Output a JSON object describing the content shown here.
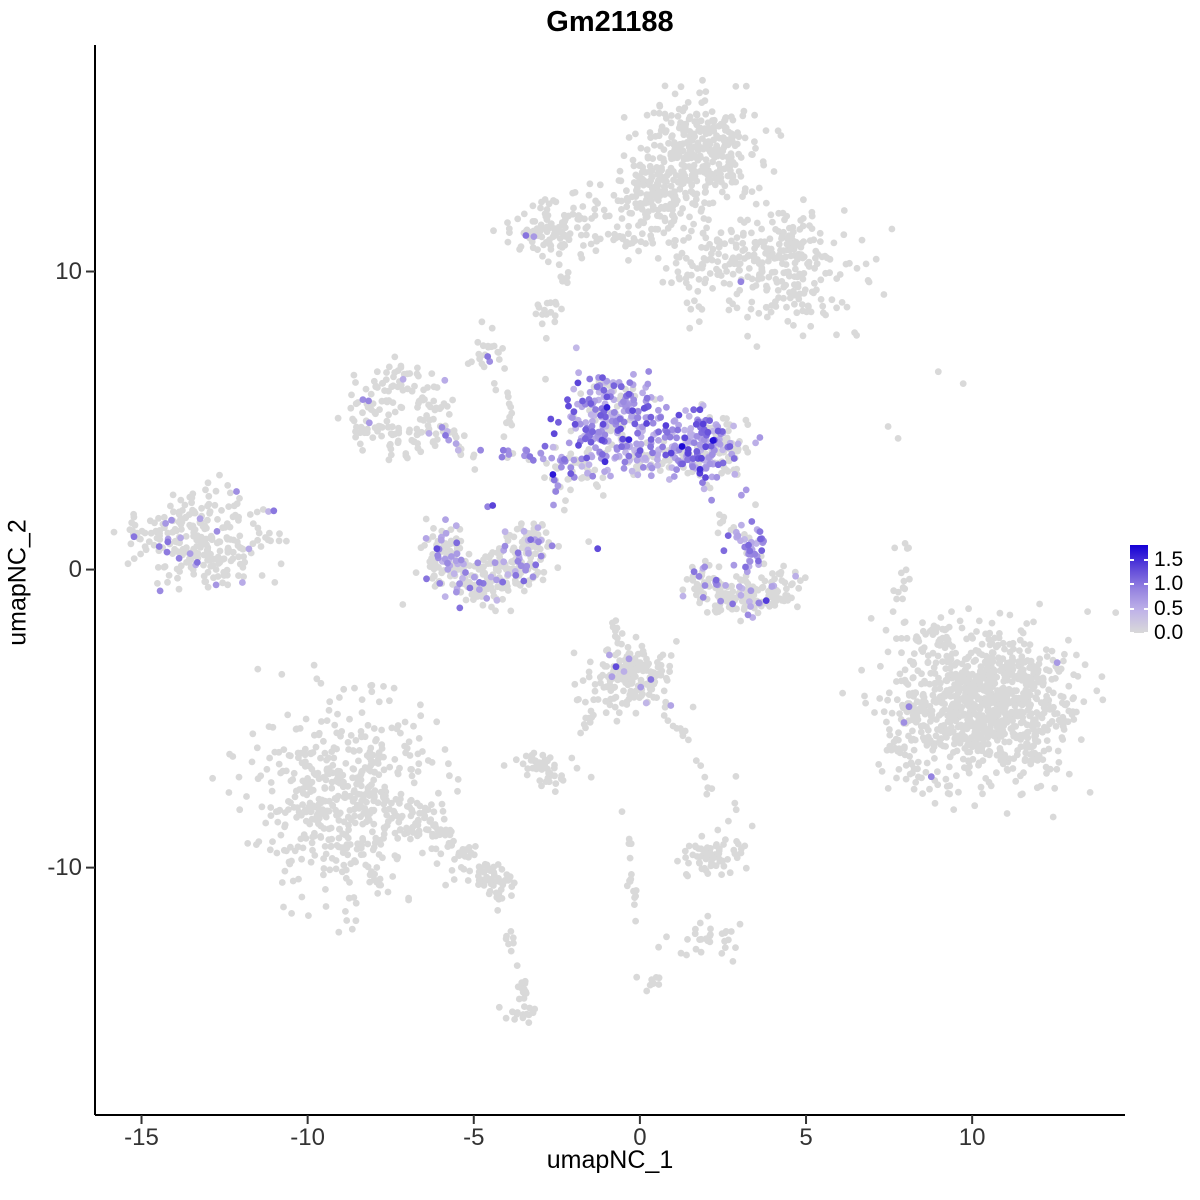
{
  "chart_data": {
    "type": "scatter",
    "title": "Gm21188",
    "xlabel": "umapNC_1",
    "ylabel": "umapNC_2",
    "x_ticks": [
      -15,
      -10,
      -5,
      0,
      5,
      10
    ],
    "y_ticks": [
      -10,
      0,
      10
    ],
    "x_range": [
      -16.4,
      14.6
    ],
    "y_range": [
      -18.3,
      17.6
    ],
    "point_radius": 3.4,
    "grid": false,
    "legend_position": "right",
    "color_scale": {
      "max": 1.8,
      "stops": [
        [
          0,
          "#d9d9d9"
        ],
        [
          0.25,
          "#c0b4e8"
        ],
        [
          0.5,
          "#9583e0"
        ],
        [
          0.75,
          "#5b44d9"
        ],
        [
          1,
          "#1400d6"
        ]
      ],
      "labels": [
        {
          "v": 1.5,
          "label": "1.5"
        },
        {
          "v": 1.0,
          "label": "1.0"
        },
        {
          "v": 0.5,
          "label": "0.5"
        },
        {
          "v": 0.0,
          "label": "0.0"
        }
      ]
    },
    "clusters": [
      {
        "k": "blob",
        "name": "top-main-core",
        "x": 1.8,
        "y": 14.1,
        "sx": 0.8,
        "sy": 0.85,
        "n": 330
      },
      {
        "k": "blob",
        "name": "top-main-left",
        "x": 0.3,
        "y": 12.6,
        "sx": 0.55,
        "sy": 0.62,
        "n": 140
      },
      {
        "k": "blob",
        "name": "top-right-arm",
        "x": 4.1,
        "y": 10.5,
        "sx": 1.05,
        "sy": 0.8,
        "n": 230
      },
      {
        "k": "blob",
        "name": "top-bridge",
        "x": 1.6,
        "y": 10.6,
        "sx": 0.5,
        "sy": 0.85,
        "n": 70
      },
      {
        "k": "blob",
        "name": "top-arm-scatter",
        "x": 4.8,
        "y": 8.9,
        "sx": 0.9,
        "sy": 0.5,
        "n": 40
      },
      {
        "k": "blob",
        "name": "topleft-small",
        "x": -2.4,
        "y": 11.5,
        "sx": 0.8,
        "sy": 0.5,
        "n": 110
      },
      {
        "k": "trail",
        "x": -1.2,
        "y": 11.2,
        "x2": 0.45,
        "y2": 11.0,
        "j": 0.15,
        "n": 22
      },
      {
        "k": "trail",
        "x": -2.35,
        "y": 10.9,
        "x2": -2.2,
        "y2": 9.6,
        "j": 0.1,
        "n": 8
      },
      {
        "k": "blob",
        "name": "tilted-piece",
        "x": -2.77,
        "y": 8.6,
        "sx": 0.22,
        "sy": 0.3,
        "n": 16
      },
      {
        "k": "blob",
        "name": "flame",
        "x": -4.6,
        "y": 7.3,
        "sx": 0.28,
        "sy": 0.42,
        "n": 22
      },
      {
        "k": "ring",
        "name": "midleft-ring",
        "x": -7.17,
        "y": 5.3,
        "r": 1.05,
        "rs": 0.38,
        "n": 160,
        "f": 0.1,
        "v0": 0.5,
        "v1": 1.1
      },
      {
        "k": "trail",
        "x": -6.0,
        "y": 4.8,
        "x2": -5.0,
        "y2": 3.9,
        "j": 0.15,
        "n": 12,
        "f": 0.15
      },
      {
        "k": "trail",
        "x": -4.2,
        "y": 6.4,
        "x2": -3.8,
        "y2": 4.3,
        "j": 0.12,
        "n": 13
      },
      {
        "k": "trail",
        "x": -4.4,
        "y": 3.96,
        "x2": -2.8,
        "y2": 3.76,
        "j": 0.12,
        "n": 15,
        "f": 0.5,
        "v0": 0.6,
        "v1": 1.0
      },
      {
        "k": "trail",
        "x": -5.7,
        "y": 4.2,
        "x2": -4.8,
        "y2": 3.4,
        "j": 0.15,
        "n": 8,
        "f": 0.2
      },
      {
        "k": "blob",
        "name": "central-left-lobe",
        "x": -0.84,
        "y": 5.0,
        "sx": 0.72,
        "sy": 0.78,
        "n": 260,
        "f": 0.78,
        "v0": 0.4,
        "v1": 1.35
      },
      {
        "k": "trail",
        "x": -1.2,
        "y": 6.3,
        "x2": -0.84,
        "y2": 5.8,
        "j": 0.12,
        "n": 10,
        "f": 0.7
      },
      {
        "k": "blob",
        "name": "central-bridge",
        "x": 0.36,
        "y": 3.7,
        "sx": 0.55,
        "sy": 0.33,
        "n": 55,
        "f": 0.55
      },
      {
        "k": "blob",
        "name": "central-right-lobe",
        "x": 1.8,
        "y": 4.13,
        "sx": 0.55,
        "sy": 0.62,
        "n": 190,
        "f": 0.72,
        "v0": 0.4,
        "v1": 1.4
      },
      {
        "k": "blob",
        "name": "central-right-fringe",
        "x": 2.65,
        "y": 3.96,
        "sx": 0.3,
        "sy": 0.45,
        "n": 45,
        "f": 0.15
      },
      {
        "k": "blob",
        "name": "central-spur",
        "x": -1.87,
        "y": 3.36,
        "sx": 0.4,
        "sy": 0.5,
        "n": 45,
        "f": 0.5
      },
      {
        "k": "trail",
        "x": -2.62,
        "y": 3.96,
        "x2": -2.47,
        "y2": 1.95,
        "j": 0.12,
        "n": 12,
        "f": 0.4
      },
      {
        "k": "blob",
        "name": "c-cluster-left",
        "x": -5.9,
        "y": 0.4,
        "sx": 0.35,
        "sy": 0.55,
        "n": 90,
        "f": 0.22
      },
      {
        "k": "blob",
        "name": "c-cluster-bottom",
        "x": -4.76,
        "y": -0.4,
        "sx": 0.62,
        "sy": 0.4,
        "n": 120,
        "f": 0.22
      },
      {
        "k": "blob",
        "name": "c-cluster-right",
        "x": -3.58,
        "y": 0.34,
        "sx": 0.4,
        "sy": 0.5,
        "n": 95,
        "f": 0.22
      },
      {
        "k": "blob",
        "name": "c-cluster-tip",
        "x": -3.25,
        "y": 1.11,
        "sx": 0.25,
        "sy": 0.3,
        "n": 25,
        "f": 0.2
      },
      {
        "k": "blob",
        "name": "left-island",
        "x": -13.5,
        "y": 1.0,
        "sx": 0.85,
        "sy": 0.75,
        "n": 240,
        "f": 0.085
      },
      {
        "k": "blob",
        "name": "left-island-east",
        "x": -11.6,
        "y": 1.17,
        "sx": 0.5,
        "sy": 0.8,
        "n": 28,
        "f": 0.1
      },
      {
        "k": "blob",
        "name": "right-streak",
        "x": 3.31,
        "y": 0.7,
        "sx": 0.28,
        "sy": 0.55,
        "n": 50,
        "f": 0.8,
        "v0": 0.4,
        "v1": 1.2
      },
      {
        "k": "trail",
        "x": 2.5,
        "y": 1.7,
        "x2": 3.1,
        "y2": 0.97,
        "j": 0.15,
        "n": 9,
        "f": 0.1
      },
      {
        "k": "blob",
        "name": "arc-left-tip",
        "x": 1.99,
        "y": -0.44,
        "sx": 0.3,
        "sy": 0.3,
        "n": 40,
        "f": 0.18
      },
      {
        "k": "blob",
        "name": "arc-bottom",
        "x": 3.07,
        "y": -0.94,
        "sx": 0.65,
        "sy": 0.3,
        "n": 110,
        "f": 0.1
      },
      {
        "k": "blob",
        "name": "arc-right-tip",
        "x": 4.31,
        "y": -0.5,
        "sx": 0.25,
        "sy": 0.35,
        "n": 30,
        "f": 0.12
      },
      {
        "k": "blob",
        "name": "mid-bottom",
        "x": -0.36,
        "y": -3.59,
        "sx": 0.62,
        "sy": 0.55,
        "n": 180,
        "f": 0.02,
        "v0": 0.4,
        "v1": 0.8
      },
      {
        "k": "trail",
        "x": -0.72,
        "y": -2.62,
        "x2": -0.9,
        "y2": -1.41,
        "j": 0.1,
        "n": 8
      },
      {
        "k": "trail",
        "x": -1.33,
        "y": -4.77,
        "x2": -2.02,
        "y2": -5.77,
        "j": 0.12,
        "n": 9
      },
      {
        "k": "trail",
        "x": 0.84,
        "y": -4.77,
        "x2": 1.57,
        "y2": -5.6,
        "j": 0.12,
        "n": 9
      },
      {
        "k": "trail",
        "x": 1.8,
        "y": -6.4,
        "x2": 2.1,
        "y2": -7.6,
        "j": 0.1,
        "n": 6
      },
      {
        "k": "blob",
        "name": "small-mid-blob",
        "x": -2.86,
        "y": -6.71,
        "sx": 0.45,
        "sy": 0.35,
        "n": 40
      },
      {
        "k": "blob",
        "x": -3.4,
        "y": -6.31,
        "sx": 0.15,
        "sy": 0.15,
        "n": 5
      },
      {
        "k": "blob",
        "name": "bottomleft-main",
        "x": -8.9,
        "y": -7.7,
        "sx": 1.3,
        "sy": 1.55,
        "n": 520
      },
      {
        "k": "trail",
        "name": "bottomleft-tail",
        "x": -7.0,
        "y": -8.1,
        "x2": -4.3,
        "y2": -10.45,
        "j": 0.28,
        "n": 80
      },
      {
        "k": "blob",
        "x": -4.31,
        "y": -10.5,
        "sx": 0.35,
        "sy": 0.3,
        "n": 40
      },
      {
        "k": "trail",
        "x": -4.2,
        "y": -11.2,
        "x2": -3.73,
        "y2": -12.9,
        "j": 0.1,
        "n": 8
      },
      {
        "k": "trail",
        "x": -3.67,
        "y": -13.36,
        "x2": -3.4,
        "y2": -14.7,
        "j": 0.12,
        "n": 14
      },
      {
        "k": "blob",
        "x": -3.55,
        "y": -14.93,
        "sx": 0.3,
        "sy": 0.2,
        "n": 16
      },
      {
        "k": "blob",
        "name": "bottomright-main",
        "x": 10.4,
        "y": -4.5,
        "sx": 1.3,
        "sy": 1.2,
        "n": 950
      },
      {
        "k": "blob",
        "name": "bottomright-spur",
        "x": 7.98,
        "y": -5.87,
        "sx": 0.35,
        "sy": 0.8,
        "n": 60
      },
      {
        "k": "blob",
        "x": 8.58,
        "y": -2.35,
        "sx": 0.5,
        "sy": 0.35,
        "n": 35
      },
      {
        "k": "blob",
        "name": "south-blob",
        "x": 2.17,
        "y": -9.56,
        "sx": 0.5,
        "sy": 0.35,
        "n": 65
      },
      {
        "k": "blob",
        "x": 2.92,
        "y": -7.72,
        "sx": 0.25,
        "sy": 0.4,
        "n": 5
      },
      {
        "k": "trail",
        "x": -0.36,
        "y": -8.99,
        "x2": -0.12,
        "y2": -12.0,
        "j": 0.1,
        "n": 15
      },
      {
        "k": "blob",
        "name": "arrow-blob",
        "x": 2.29,
        "y": -12.45,
        "sx": 0.5,
        "sy": 0.35,
        "n": 30
      },
      {
        "k": "blob",
        "x": 0.42,
        "y": -13.79,
        "sx": 0.2,
        "sy": 0.2,
        "n": 9
      },
      {
        "k": "blob",
        "x": 7.86,
        "y": -0.17,
        "sx": 0.18,
        "sy": 0.4,
        "n": 11
      },
      {
        "k": "trail",
        "x": 8.01,
        "y": 0.97,
        "x2": 8.19,
        "y2": 0.6,
        "j": 0.05,
        "n": 3
      }
    ],
    "singles_grey": [
      [
        7.47,
        4.8
      ],
      [
        7.77,
        4.4
      ],
      [
        7.95,
        -1.78
      ],
      [
        7.62,
        -1.41
      ],
      [
        8.98,
        6.64
      ],
      [
        9.73,
        6.24
      ],
      [
        3.52,
        7.48
      ],
      [
        -1.54,
        0.94
      ],
      [
        -0.54,
        -8.12
      ]
    ],
    "singles_expressing": [
      [
        -3.43,
        11.21,
        1.0
      ],
      [
        -3.19,
        11.17,
        0.7
      ],
      [
        3.04,
        9.66,
        0.9
      ],
      [
        -4.58,
        7.15,
        1.0
      ],
      [
        -4.52,
        6.98,
        0.8
      ],
      [
        -0.99,
        5.44,
        1.6
      ],
      [
        -0.33,
        4.36,
        1.55
      ],
      [
        -1.05,
        3.62,
        1.5
      ],
      [
        1.27,
        4.13,
        1.75
      ],
      [
        2.2,
        4.33,
        1.7
      ],
      [
        1.81,
        3.36,
        1.5
      ],
      [
        -2.08,
        3.22,
        1.2
      ],
      [
        -2.62,
        3.19,
        1.65
      ],
      [
        -2.53,
        2.62,
        0.9
      ],
      [
        -1.27,
        0.7,
        1.3
      ],
      [
        -6.11,
        0.7,
        1.3
      ],
      [
        -4.43,
        2.15,
        1.35
      ],
      [
        -4.58,
        2.11,
        0.9
      ],
      [
        1.78,
        -0.23,
        0.9
      ],
      [
        1.63,
        -0.07,
        1.0
      ],
      [
        3.8,
        -1.04,
        1.4
      ],
      [
        -0.72,
        -3.26,
        1.3
      ],
      [
        -0.48,
        -3.42,
        0.5
      ],
      [
        0.33,
        -3.69,
        1.0
      ],
      [
        0.93,
        -4.56,
        0.6
      ],
      [
        8.1,
        -4.6,
        0.9
      ],
      [
        7.95,
        -5.13,
        0.8
      ],
      [
        8.77,
        -6.95,
        0.9
      ],
      [
        12.56,
        -3.12,
        0.7
      ],
      [
        -12.14,
        2.62,
        0.8
      ]
    ]
  }
}
